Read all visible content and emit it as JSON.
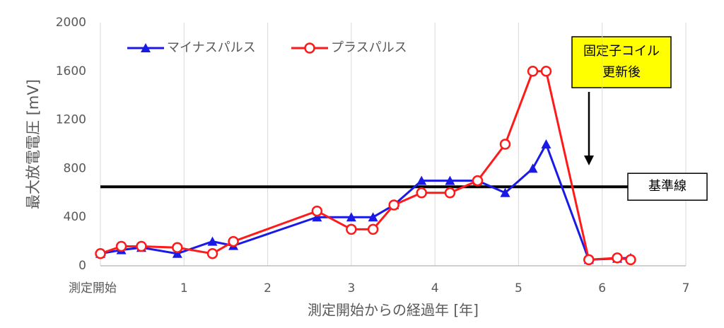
{
  "chart_data": {
    "type": "line",
    "x_label": "測定開始からの経過年 [年]",
    "y_label": "最大放電電圧 [mV]",
    "x": [
      0,
      0.25,
      0.49,
      0.92,
      1.34,
      1.59,
      2.59,
      3.0,
      3.26,
      3.51,
      3.84,
      4.18,
      4.51,
      4.84,
      5.17,
      5.33,
      5.84,
      6.18,
      6.34
    ],
    "series": [
      {
        "name": "マイナスパルス",
        "color": "#1a1ae6",
        "marker": "triangle",
        "values": [
          100,
          130,
          150,
          100,
          200,
          165,
          400,
          400,
          400,
          500,
          700,
          700,
          700,
          600,
          800,
          1000,
          50,
          60,
          65
        ]
      },
      {
        "name": "プラスパルス",
        "color": "#ff1a1a",
        "marker": "circle",
        "values": [
          100,
          160,
          160,
          150,
          100,
          200,
          450,
          300,
          300,
          500,
          600,
          600,
          700,
          1000,
          1600,
          1600,
          50,
          65,
          50
        ]
      }
    ],
    "xlim": [
      0,
      7
    ],
    "xticks": [
      {
        "value": 0,
        "label": "測定開始"
      },
      1,
      2,
      3,
      4,
      5,
      6,
      7
    ],
    "ylim": [
      0,
      2000
    ],
    "yticks": [
      0,
      400,
      800,
      1200,
      1600,
      2000
    ],
    "grid": "x",
    "legend": "upper left",
    "reference_line": {
      "value": 650,
      "label": "基準線"
    },
    "annotation": [
      "固定子コイル",
      "更新後"
    ]
  }
}
